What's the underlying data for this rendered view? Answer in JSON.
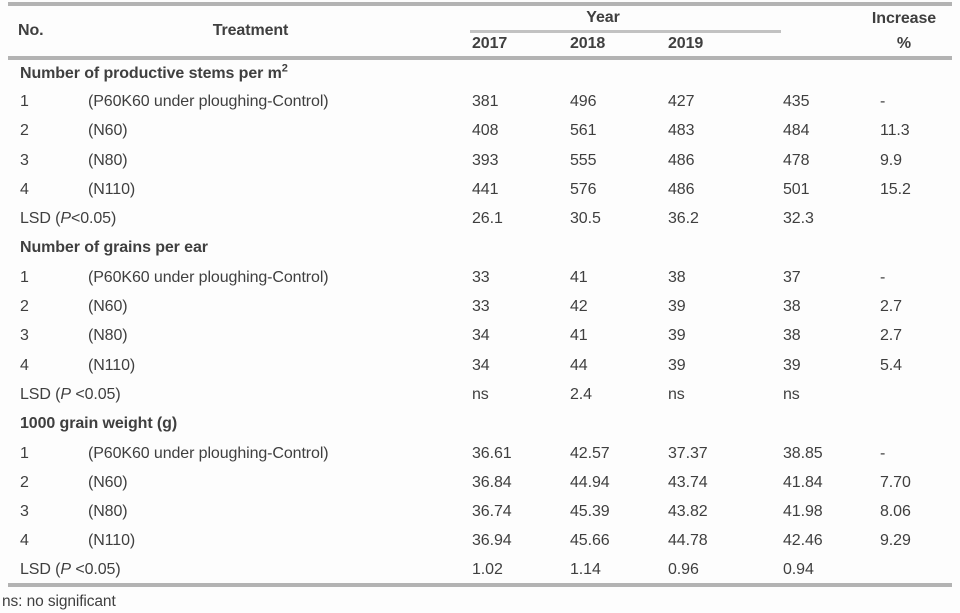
{
  "header": {
    "no": "No.",
    "treatment": "Treatment",
    "year": "Year",
    "years": [
      "2017",
      "2018",
      "2019"
    ],
    "average_label": "",
    "increase_line1": "Increase",
    "increase_line2": "%"
  },
  "sections": [
    {
      "title": "Number of productive stems per m",
      "title_sup": "2",
      "rows": [
        {
          "no": "1",
          "treatment": "(P60K60 under ploughing-Control)",
          "v2017": "381",
          "v2018": "496",
          "v2019": "427",
          "avg": "435",
          "inc": "-"
        },
        {
          "no": "2",
          "treatment": "(N60)",
          "v2017": "408",
          "v2018": "561",
          "v2019": "483",
          "avg": "484",
          "inc": "11.3"
        },
        {
          "no": "3",
          "treatment": "(N80)",
          "v2017": "393",
          "v2018": "555",
          "v2019": "486",
          "avg": "478",
          "inc": "9.9"
        },
        {
          "no": "4",
          "treatment": "(N110)",
          "v2017": "441",
          "v2018": "576",
          "v2019": "486",
          "avg": "501",
          "inc": "15.2"
        }
      ],
      "lsd": {
        "pre": "LSD (",
        "p": "P",
        "post": "<0.05)",
        "v2017": "26.1",
        "v2018": "30.5",
        "v2019": "36.2",
        "avg": "32.3",
        "inc": ""
      }
    },
    {
      "title": "Number of grains per ear",
      "title_sup": "",
      "rows": [
        {
          "no": "1",
          "treatment": "(P60K60 under ploughing-Control)",
          "v2017": "33",
          "v2018": "41",
          "v2019": "38",
          "avg": "37",
          "inc": "-"
        },
        {
          "no": "2",
          "treatment": "(N60)",
          "v2017": "33",
          "v2018": "42",
          "v2019": "39",
          "avg": "38",
          "inc": "2.7"
        },
        {
          "no": "3",
          "treatment": "(N80)",
          "v2017": "34",
          "v2018": "41",
          "v2019": "39",
          "avg": "38",
          "inc": "2.7"
        },
        {
          "no": "4",
          "treatment": "(N110)",
          "v2017": "34",
          "v2018": "44",
          "v2019": "39",
          "avg": "39",
          "inc": "5.4"
        }
      ],
      "lsd": {
        "pre": "LSD (",
        "p": "P",
        "post": " <0.05)",
        "v2017": "ns",
        "v2018": "2.4",
        "v2019": "ns",
        "avg": "ns",
        "inc": ""
      }
    },
    {
      "title": "1000 grain weight (g)",
      "title_sup": "",
      "rows": [
        {
          "no": "1",
          "treatment": "(P60K60 under ploughing-Control)",
          "v2017": "36.61",
          "v2018": "42.57",
          "v2019": "37.37",
          "avg": "38.85",
          "inc": "-"
        },
        {
          "no": "2",
          "treatment": "(N60)",
          "v2017": "36.84",
          "v2018": "44.94",
          "v2019": "43.74",
          "avg": "41.84",
          "inc": "7.70"
        },
        {
          "no": "3",
          "treatment": "(N80)",
          "v2017": "36.74",
          "v2018": "45.39",
          "v2019": "43.82",
          "avg": "41.98",
          "inc": "8.06"
        },
        {
          "no": "4",
          "treatment": "(N110)",
          "v2017": "36.94",
          "v2018": "45.66",
          "v2019": "44.78",
          "avg": "42.46",
          "inc": "9.29"
        }
      ],
      "lsd": {
        "pre": "LSD (",
        "p": "P",
        "post": " <0.05)",
        "v2017": "1.02",
        "v2018": "1.14",
        "v2019": "0.96",
        "avg": "0.94",
        "inc": ""
      }
    }
  ],
  "footnote": "ns: no significant",
  "colors": {
    "text": "#3f3f3f",
    "rule": "#b3b3b3",
    "year_rule": "#c2c2c2",
    "background": "#fdfdfd"
  }
}
